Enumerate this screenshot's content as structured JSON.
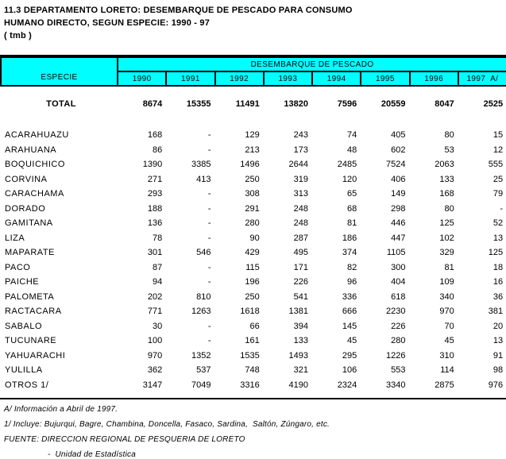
{
  "title": {
    "line1": "11.3 DEPARTAMENTO LORETO: DESEMBARQUE DE PESCADO PARA CONSUMO",
    "line2": "HUMANO DIRECTO, SEGUN ESPECIE: 1990 - 97",
    "line3": "( tmb )"
  },
  "colors": {
    "header_bg": "#00ffff",
    "border": "#000000",
    "text": "#000000"
  },
  "table": {
    "row_header": "ESPECIE",
    "col_group_header": "DESEMBARQUE DE PESCADO",
    "years": [
      "1990",
      "1991",
      "1992",
      "1993",
      "1994",
      "1995",
      "1996",
      "1997  A/"
    ],
    "total_row": {
      "label": "TOTAL",
      "values": [
        "8674",
        "15355",
        "11491",
        "13820",
        "7596",
        "20559",
        "8047",
        "2525"
      ]
    },
    "rows": [
      {
        "label": "ACARAHUAZU",
        "values": [
          "168",
          "-",
          "129",
          "243",
          "74",
          "405",
          "80",
          "15"
        ]
      },
      {
        "label": "ARAHUANA",
        "values": [
          "86",
          "-",
          "213",
          "173",
          "48",
          "602",
          "53",
          "12"
        ]
      },
      {
        "label": "BOQUICHICO",
        "values": [
          "1390",
          "3385",
          "1496",
          "2644",
          "2485",
          "7524",
          "2063",
          "555"
        ]
      },
      {
        "label": "CORVINA",
        "values": [
          "271",
          "413",
          "250",
          "319",
          "120",
          "406",
          "133",
          "25"
        ]
      },
      {
        "label": "CARACHAMA",
        "values": [
          "293",
          "-",
          "308",
          "313",
          "65",
          "149",
          "168",
          "79"
        ]
      },
      {
        "label": "DORADO",
        "values": [
          "188",
          "-",
          "291",
          "248",
          "68",
          "298",
          "80",
          "-"
        ]
      },
      {
        "label": "GAMITANA",
        "values": [
          "136",
          "-",
          "280",
          "248",
          "81",
          "446",
          "125",
          "52"
        ]
      },
      {
        "label": "LIZA",
        "values": [
          "78",
          "-",
          "90",
          "287",
          "186",
          "447",
          "102",
          "13"
        ]
      },
      {
        "label": "MAPARATE",
        "values": [
          "301",
          "546",
          "429",
          "495",
          "374",
          "1105",
          "329",
          "125"
        ]
      },
      {
        "label": "PACO",
        "values": [
          "87",
          "-",
          "115",
          "171",
          "82",
          "300",
          "81",
          "18"
        ]
      },
      {
        "label": "PAICHE",
        "values": [
          "94",
          "-",
          "196",
          "226",
          "96",
          "404",
          "109",
          "16"
        ]
      },
      {
        "label": "PALOMETA",
        "values": [
          "202",
          "810",
          "250",
          "541",
          "336",
          "618",
          "340",
          "36"
        ]
      },
      {
        "label": "RACTACARA",
        "values": [
          "771",
          "1263",
          "1618",
          "1381",
          "666",
          "2230",
          "970",
          "381"
        ]
      },
      {
        "label": "SABALO",
        "values": [
          "30",
          "-",
          "66",
          "394",
          "145",
          "226",
          "70",
          "20"
        ]
      },
      {
        "label": "TUCUNARE",
        "values": [
          "100",
          "-",
          "161",
          "133",
          "45",
          "280",
          "45",
          "13"
        ]
      },
      {
        "label": "YAHUARACHI",
        "values": [
          "970",
          "1352",
          "1535",
          "1493",
          "295",
          "1226",
          "310",
          "91"
        ]
      },
      {
        "label": "YULILLA",
        "values": [
          "362",
          "537",
          "748",
          "321",
          "106",
          "553",
          "114",
          "98"
        ]
      },
      {
        "label": "OTROS 1/",
        "values": [
          "3147",
          "7049",
          "3316",
          "4190",
          "2324",
          "3340",
          "2875",
          "976"
        ]
      }
    ]
  },
  "footnotes": [
    "A/ Información a Abril de 1997.",
    "1/ Incluye: Bujurqui, Bagre, Chambina, Doncella, Fasaco, Sardina,  Saltón, Zúngaro, etc.",
    "FUENTE: DIRECCION REGIONAL DE PESQUERIA DE LORETO",
    "-  Unidad de Estadística"
  ]
}
